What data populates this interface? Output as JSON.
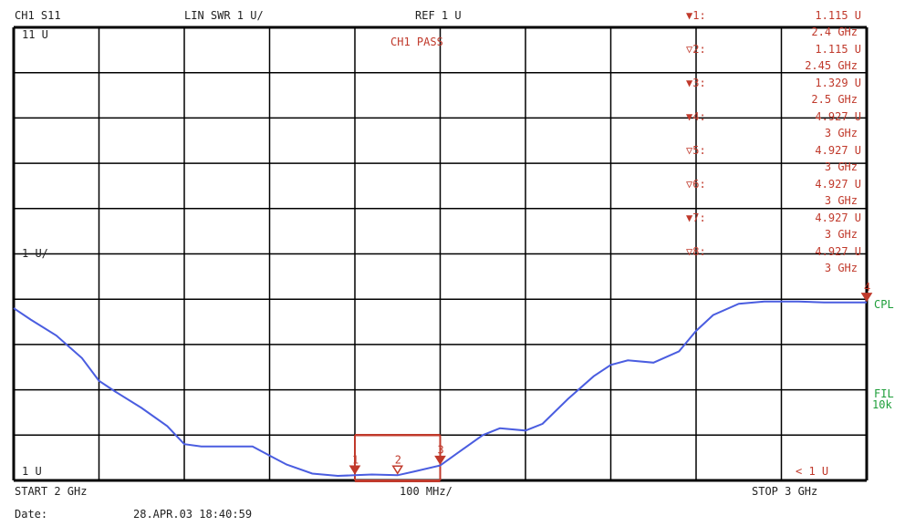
{
  "header": {
    "channel": "CH1 S11",
    "format": "LIN SWR 1 U/",
    "ref": "REF 1 U"
  },
  "screen": {
    "pass_label": "CH1 PASS",
    "top_label": "11 U",
    "mid_label": "1 U/",
    "bottom_label": "1 U",
    "right_bottom_label": "< 1 U",
    "cpl_label": "CPL",
    "fil_label": "FIL",
    "fil_value": "10k"
  },
  "markers": [
    {
      "label": "▼1:",
      "value": "1.115  U",
      "freq": "2.4 GHz",
      "active": true
    },
    {
      "label": "▽2:",
      "value": "1.115  U",
      "freq": "2.45 GHz",
      "active": false
    },
    {
      "label": "▼3:",
      "value": "1.329  U",
      "freq": "2.5 GHz",
      "active": true
    },
    {
      "label": "▼4:",
      "value": "4.927  U",
      "freq": "3 GHz",
      "active": true
    },
    {
      "label": "▽5:",
      "value": "4.927  U",
      "freq": "3 GHz",
      "active": false
    },
    {
      "label": "▽6:",
      "value": "4.927  U",
      "freq": "3 GHz",
      "active": false
    },
    {
      "label": "▼7:",
      "value": "4.927  U",
      "freq": "3 GHz",
      "active": true
    },
    {
      "label": "▽8:",
      "value": "4.927  U",
      "freq": "3 GHz",
      "active": false
    }
  ],
  "footer": {
    "start": "START  2 GHz",
    "span": "100 MHz/",
    "stop": "STOP 3 GHz",
    "date_label": "Date:",
    "date_value": "28.APR.03  18:40:59"
  },
  "colors": {
    "trace": "#4a5de0",
    "marker": "#c0392b",
    "grid": "#000000",
    "status": "#1e9e3a"
  },
  "chart_data": {
    "type": "line",
    "xlim": [
      2.0,
      3.0
    ],
    "ylim": [
      1,
      11
    ],
    "x_unit": "GHz",
    "y_unit": "U",
    "grid": true,
    "limit_line": {
      "x_start": 2.4,
      "x_end": 2.5,
      "y_upper": 2,
      "y_lower": 1
    },
    "series": [
      {
        "x": [
          2.0,
          2.02,
          2.05,
          2.08,
          2.1,
          2.12,
          2.15,
          2.18,
          2.2,
          2.22,
          2.25,
          2.28,
          2.3,
          2.32,
          2.35,
          2.38,
          2.4,
          2.42,
          2.45,
          2.47,
          2.5,
          2.52,
          2.55,
          2.57,
          2.6,
          2.62,
          2.65,
          2.68,
          2.7,
          2.72,
          2.75,
          2.78,
          2.8,
          2.82,
          2.85,
          2.88,
          2.9,
          2.92,
          2.95,
          2.98,
          3.0
        ],
        "y": [
          4.8,
          4.55,
          4.2,
          3.7,
          3.2,
          2.95,
          2.6,
          2.2,
          1.8,
          1.75,
          1.75,
          1.75,
          1.55,
          1.35,
          1.15,
          1.1,
          1.115,
          1.13,
          1.115,
          1.2,
          1.329,
          1.6,
          2.0,
          2.15,
          2.1,
          2.25,
          2.8,
          3.3,
          3.55,
          3.65,
          3.6,
          3.85,
          4.3,
          4.65,
          4.9,
          4.95,
          4.95,
          4.95,
          4.927,
          4.927,
          4.927
        ]
      }
    ],
    "points": [
      {
        "label": "1",
        "x": 2.4,
        "y": 1.115
      },
      {
        "label": "2",
        "x": 2.45,
        "y": 1.115
      },
      {
        "label": "3",
        "x": 2.5,
        "y": 1.329
      },
      {
        "label": "4",
        "x": 3.0,
        "y": 4.927
      }
    ]
  }
}
